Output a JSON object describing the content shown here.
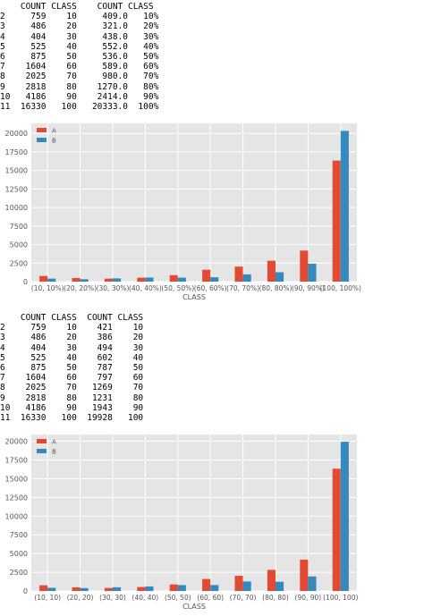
{
  "table1": {
    "header": "    COUNT CLASS    COUNT CLASS",
    "rows": [
      {
        "idx": "2",
        "count_a": 759,
        "class_a": "10",
        "count_b": "409.0",
        "class_b": "10%"
      },
      {
        "idx": "3",
        "count_a": 486,
        "class_a": "20",
        "count_b": "321.0",
        "class_b": "20%"
      },
      {
        "idx": "4",
        "count_a": 404,
        "class_a": "30",
        "count_b": "438.0",
        "class_b": "30%"
      },
      {
        "idx": "5",
        "count_a": 525,
        "class_a": "40",
        "count_b": "552.0",
        "class_b": "40%"
      },
      {
        "idx": "6",
        "count_a": 875,
        "class_a": "50",
        "count_b": "536.0",
        "class_b": "50%"
      },
      {
        "idx": "7",
        "count_a": 1604,
        "class_a": "60",
        "count_b": "589.0",
        "class_b": "60%"
      },
      {
        "idx": "8",
        "count_a": 2025,
        "class_a": "70",
        "count_b": "980.0",
        "class_b": "70%"
      },
      {
        "idx": "9",
        "count_a": 2818,
        "class_a": "80",
        "count_b": "1270.0",
        "class_b": "80%"
      },
      {
        "idx": "10",
        "count_a": 4186,
        "class_a": "90",
        "count_b": "2414.0",
        "class_b": "90%"
      },
      {
        "idx": "11",
        "count_a": 16330,
        "class_a": "100",
        "count_b": "20333.0",
        "class_b": "100%"
      }
    ]
  },
  "table2": {
    "header": "    COUNT CLASS  COUNT CLASS",
    "rows": [
      {
        "idx": "2",
        "count_a": 759,
        "class_a": "10",
        "count_b": "421",
        "class_b": "10"
      },
      {
        "idx": "3",
        "count_a": 486,
        "class_a": "20",
        "count_b": "386",
        "class_b": "20"
      },
      {
        "idx": "4",
        "count_a": 404,
        "class_a": "30",
        "count_b": "494",
        "class_b": "30"
      },
      {
        "idx": "5",
        "count_a": 525,
        "class_a": "40",
        "count_b": "602",
        "class_b": "40"
      },
      {
        "idx": "6",
        "count_a": 875,
        "class_a": "50",
        "count_b": "787",
        "class_b": "50"
      },
      {
        "idx": "7",
        "count_a": 1604,
        "class_a": "60",
        "count_b": "797",
        "class_b": "60"
      },
      {
        "idx": "8",
        "count_a": 2025,
        "class_a": "70",
        "count_b": "1269",
        "class_b": "70"
      },
      {
        "idx": "9",
        "count_a": 2818,
        "class_a": "80",
        "count_b": "1231",
        "class_b": "80"
      },
      {
        "idx": "10",
        "count_a": 4186,
        "class_a": "90",
        "count_b": "1943",
        "class_b": "90"
      },
      {
        "idx": "11",
        "count_a": 16330,
        "class_a": "100",
        "count_b": "19928",
        "class_b": "100"
      }
    ]
  },
  "colors": {
    "A": "#e24a33",
    "B": "#348abd",
    "background": "#e5e5e5",
    "grid": "#ffffff",
    "text": "#555555"
  },
  "chart_data": [
    {
      "type": "bar",
      "title": "",
      "xlabel": "CLASS",
      "ylabel": "",
      "ylim": [
        0,
        21350
      ],
      "yticks": [
        0,
        2500,
        5000,
        7500,
        10000,
        12500,
        15000,
        17500,
        20000
      ],
      "grid": true,
      "legend_placement": "top-left",
      "categories": [
        "(10, 10%)",
        "(20, 20%)",
        "(30, 30%)",
        "(40, 40%)",
        "(50, 50%)",
        "(60, 60%)",
        "(70, 70%)",
        "(80, 80%)",
        "(90, 90%)",
        "(100, 100%)"
      ],
      "series": [
        {
          "name": "A",
          "values": [
            759,
            486,
            404,
            525,
            875,
            1604,
            2025,
            2818,
            4186,
            16330
          ]
        },
        {
          "name": "B",
          "values": [
            409,
            321,
            438,
            552,
            536,
            589,
            980,
            1270,
            2414,
            20333
          ]
        }
      ]
    },
    {
      "type": "bar",
      "title": "",
      "xlabel": "CLASS",
      "ylabel": "",
      "ylim": [
        0,
        20900
      ],
      "yticks": [
        0,
        2500,
        5000,
        7500,
        10000,
        12500,
        15000,
        17500,
        20000
      ],
      "grid": true,
      "legend_placement": "top-left",
      "categories": [
        "(10, 10)",
        "(20, 20)",
        "(30, 30)",
        "(40, 40)",
        "(50, 50)",
        "(60, 60)",
        "(70, 70)",
        "(80, 80)",
        "(90, 90)",
        "(100, 100)"
      ],
      "series": [
        {
          "name": "A",
          "values": [
            759,
            486,
            404,
            525,
            875,
            1604,
            2025,
            2818,
            4186,
            16330
          ]
        },
        {
          "name": "B",
          "values": [
            421,
            386,
            494,
            602,
            787,
            797,
            1269,
            1231,
            1943,
            19928
          ]
        }
      ]
    }
  ]
}
